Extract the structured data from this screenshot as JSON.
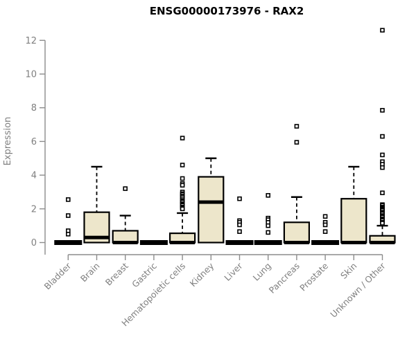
{
  "chart": {
    "title": "ENSG00000173976 - RAX2",
    "ylabel": "Expression"
  },
  "chart_data": {
    "type": "boxplot",
    "title": "ENSG00000173976 - RAX2",
    "xlabel": "",
    "ylabel": "Expression",
    "ylim": [
      0,
      12
    ],
    "yticks": [
      0,
      2,
      4,
      6,
      8,
      10,
      12
    ],
    "grid": false,
    "legend": "none",
    "box_fill": "#EDE6CB",
    "box_stroke": "#000000",
    "axis_color": "#8C8C8C",
    "label_color": "#7F7F7F",
    "categories": [
      "Bladder",
      "Brain",
      "Breast",
      "Gastric",
      "Hematopoietic cells",
      "Kidney",
      "Liver",
      "Lung",
      "Pancreas",
      "Prostate",
      "Skin",
      "Unknown / Other"
    ],
    "series": [
      {
        "category": "Bladder",
        "q1": 0,
        "median": 0,
        "q3": 0,
        "whisker_low": 0,
        "whisker_high": 0,
        "outliers": [
          2.55,
          1.6,
          0.7,
          0.5
        ]
      },
      {
        "category": "Brain",
        "q1": 0,
        "median": 0.3,
        "q3": 1.8,
        "whisker_low": 0,
        "whisker_high": 4.5,
        "outliers": []
      },
      {
        "category": "Breast",
        "q1": 0,
        "median": 0,
        "q3": 0.7,
        "whisker_low": 0,
        "whisker_high": 1.6,
        "outliers": [
          3.2
        ]
      },
      {
        "category": "Gastric",
        "q1": 0,
        "median": 0,
        "q3": 0,
        "whisker_low": 0,
        "whisker_high": 0,
        "outliers": []
      },
      {
        "category": "Hematopoietic cells",
        "q1": 0,
        "median": 0,
        "q3": 0.55,
        "whisker_low": 0,
        "whisker_high": 1.75,
        "outliers": [
          6.2,
          4.6,
          3.8,
          3.5,
          3.4,
          3.0,
          2.9,
          2.85,
          2.75,
          2.7,
          2.6,
          2.5,
          2.45,
          2.4,
          2.3,
          2.25,
          2.2,
          2.1,
          2.05,
          2.0
        ]
      },
      {
        "category": "Kidney",
        "q1": 0,
        "median": 2.4,
        "q3": 3.9,
        "whisker_low": 0,
        "whisker_high": 5.0,
        "outliers": []
      },
      {
        "category": "Liver",
        "q1": 0,
        "median": 0,
        "q3": 0,
        "whisker_low": 0,
        "whisker_high": 0,
        "outliers": [
          2.6,
          1.3,
          1.2,
          1.05,
          0.65
        ]
      },
      {
        "category": "Lung",
        "q1": 0,
        "median": 0,
        "q3": 0,
        "whisker_low": 0,
        "whisker_high": 0,
        "outliers": [
          2.8,
          1.45,
          1.35,
          1.2,
          1.0,
          0.6
        ]
      },
      {
        "category": "Pancreas",
        "q1": 0,
        "median": 0,
        "q3": 1.2,
        "whisker_low": 0,
        "whisker_high": 2.7,
        "outliers": [
          6.9,
          5.95
        ]
      },
      {
        "category": "Prostate",
        "q1": 0,
        "median": 0,
        "q3": 0,
        "whisker_low": 0,
        "whisker_high": 0,
        "outliers": [
          1.55,
          1.2,
          1.05,
          0.65
        ]
      },
      {
        "category": "Skin",
        "q1": 0,
        "median": 0,
        "q3": 2.6,
        "whisker_low": 0,
        "whisker_high": 4.5,
        "outliers": []
      },
      {
        "category": "Unknown / Other",
        "q1": 0,
        "median": 0,
        "q3": 0.4,
        "whisker_low": 0,
        "whisker_high": 1.0,
        "outliers": [
          12.6,
          7.85,
          6.3,
          5.2,
          4.8,
          4.65,
          4.45,
          2.95,
          2.25,
          2.2,
          2.1,
          2.05,
          2.0,
          1.95,
          1.9,
          1.8,
          1.75,
          1.7,
          1.6,
          1.55,
          1.5,
          1.4,
          1.35,
          1.3,
          1.2,
          1.15
        ]
      }
    ]
  }
}
